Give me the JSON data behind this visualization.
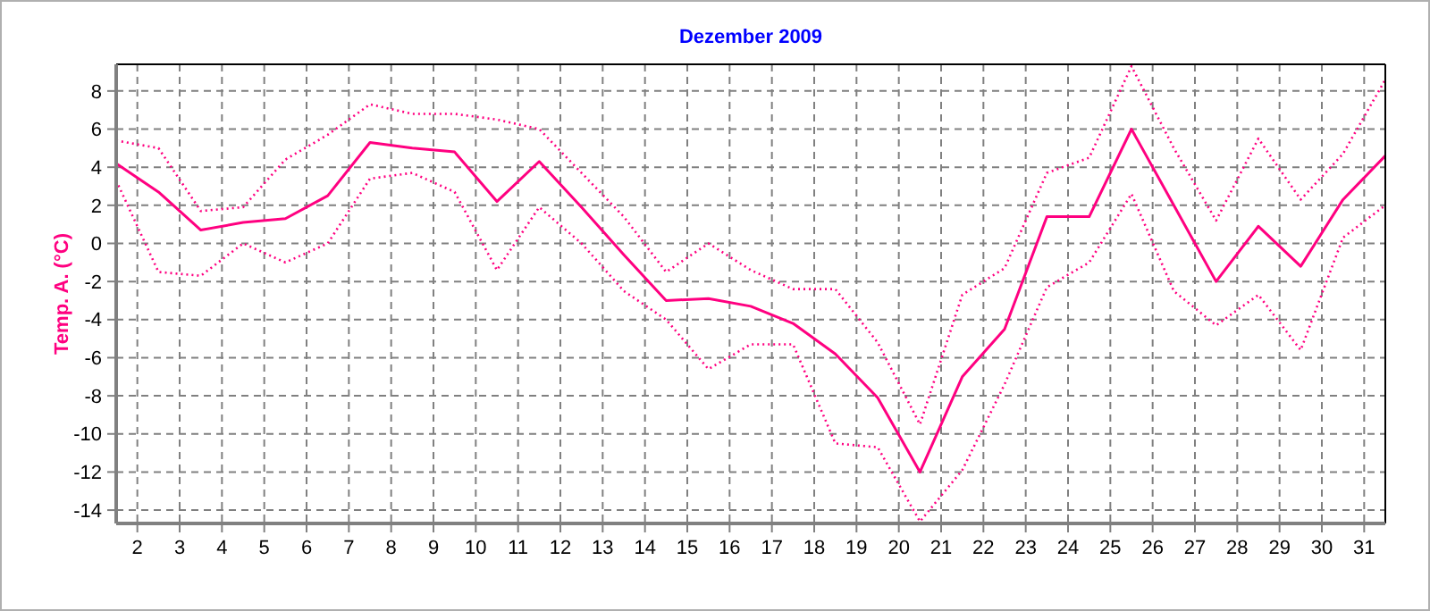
{
  "chart_data": {
    "type": "line",
    "title": "Dezember 2009",
    "ylabel": "Temp. A. (°C)",
    "x": [
      1.5,
      2.5,
      3.5,
      4.5,
      5.5,
      6.5,
      7.5,
      8.5,
      9.5,
      10.5,
      11.5,
      12.5,
      13.5,
      14.5,
      15.5,
      16.5,
      17.5,
      18.5,
      19.5,
      20.5,
      21.5,
      22.5,
      23.5,
      24.5,
      25.5,
      26.5,
      27.5,
      28.5,
      29.5,
      30.5,
      31.5
    ],
    "xlim": [
      1.5,
      31.5
    ],
    "xticks": [
      2,
      3,
      4,
      5,
      6,
      7,
      8,
      9,
      10,
      11,
      12,
      13,
      14,
      15,
      16,
      17,
      18,
      19,
      20,
      21,
      22,
      23,
      24,
      25,
      26,
      27,
      28,
      29,
      30,
      31
    ],
    "ylim": [
      -14.7,
      9.4
    ],
    "yticks": [
      -14,
      -12,
      -10,
      -8,
      -6,
      -4,
      -2,
      0,
      2,
      4,
      6,
      8
    ],
    "grid": true,
    "series": [
      {
        "color": "#ff0080",
        "line_style": "dotted",
        "values": [
          5.4,
          5.0,
          1.7,
          1.9,
          4.4,
          5.7,
          7.3,
          6.8,
          6.8,
          6.5,
          6.0,
          3.7,
          1.4,
          -1.5,
          0.0,
          -1.4,
          -2.4,
          -2.4,
          -5.2,
          -9.5,
          -2.7,
          -1.3,
          3.7,
          4.5,
          9.3,
          5.0,
          1.2,
          5.5,
          2.3,
          4.7,
          8.6
        ]
      },
      {
        "color": "#ff0080",
        "line_style": "solid",
        "values": [
          4.2,
          2.7,
          0.7,
          1.1,
          1.3,
          2.5,
          5.3,
          5.0,
          4.8,
          2.2,
          4.3,
          1.9,
          -0.6,
          -3.0,
          -2.9,
          -3.3,
          -4.2,
          -5.8,
          -8.1,
          -12.0,
          -7.0,
          -4.5,
          1.4,
          1.4,
          6.0,
          2.0,
          -2.0,
          0.9,
          -1.2,
          2.3,
          4.6
        ]
      },
      {
        "color": "#ff0080",
        "line_style": "dotted",
        "values": [
          3.3,
          -1.5,
          -1.7,
          0.0,
          -1.0,
          0.0,
          3.4,
          3.7,
          2.7,
          -1.4,
          1.9,
          0.0,
          -2.5,
          -4.0,
          -6.6,
          -5.3,
          -5.3,
          -10.5,
          -10.7,
          -14.6,
          -11.9,
          -7.4,
          -2.3,
          -1.0,
          2.6,
          -2.5,
          -4.3,
          -2.7,
          -5.6,
          0.3,
          2.0
        ]
      }
    ]
  }
}
